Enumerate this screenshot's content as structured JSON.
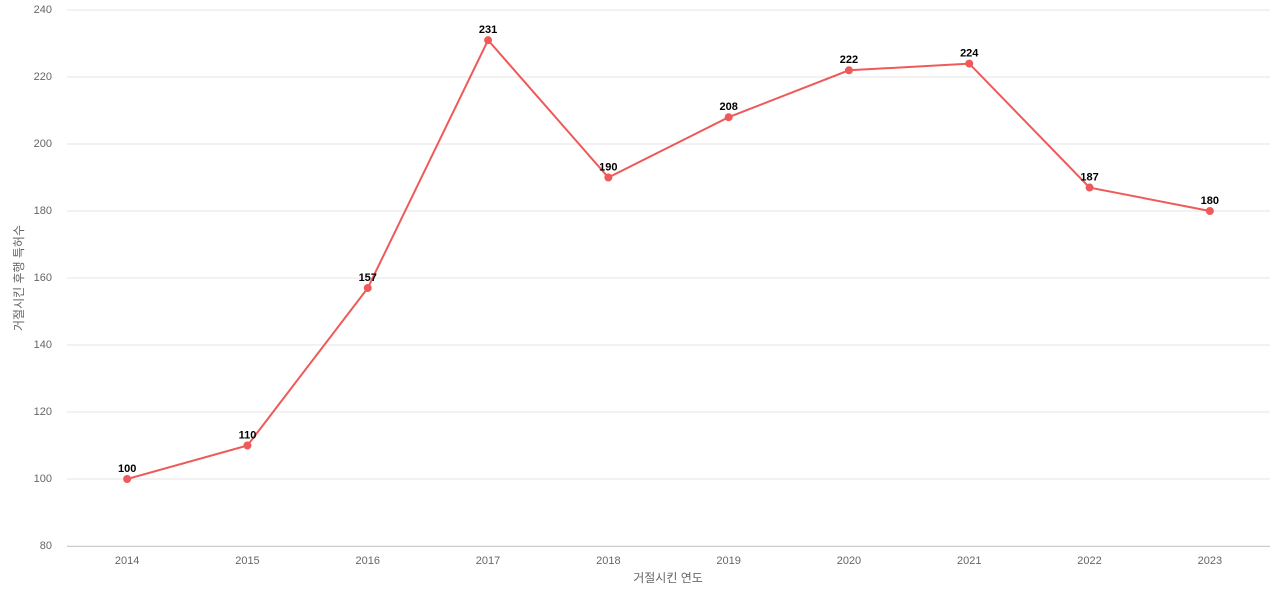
{
  "chart_data": {
    "type": "line",
    "x_label": "거절시킨 연도",
    "y_label": "거절시킨 후행 특허수",
    "categories": [
      "2014",
      "2015",
      "2016",
      "2017",
      "2018",
      "2019",
      "2020",
      "2021",
      "2022",
      "2023"
    ],
    "values": [
      100,
      110,
      157,
      231,
      190,
      208,
      222,
      224,
      187,
      180
    ],
    "color": "#ee5a5a",
    "ylim": [
      80,
      240
    ],
    "yticks": [
      80,
      100,
      120,
      140,
      160,
      180,
      200,
      220,
      240
    ],
    "grid": true
  }
}
